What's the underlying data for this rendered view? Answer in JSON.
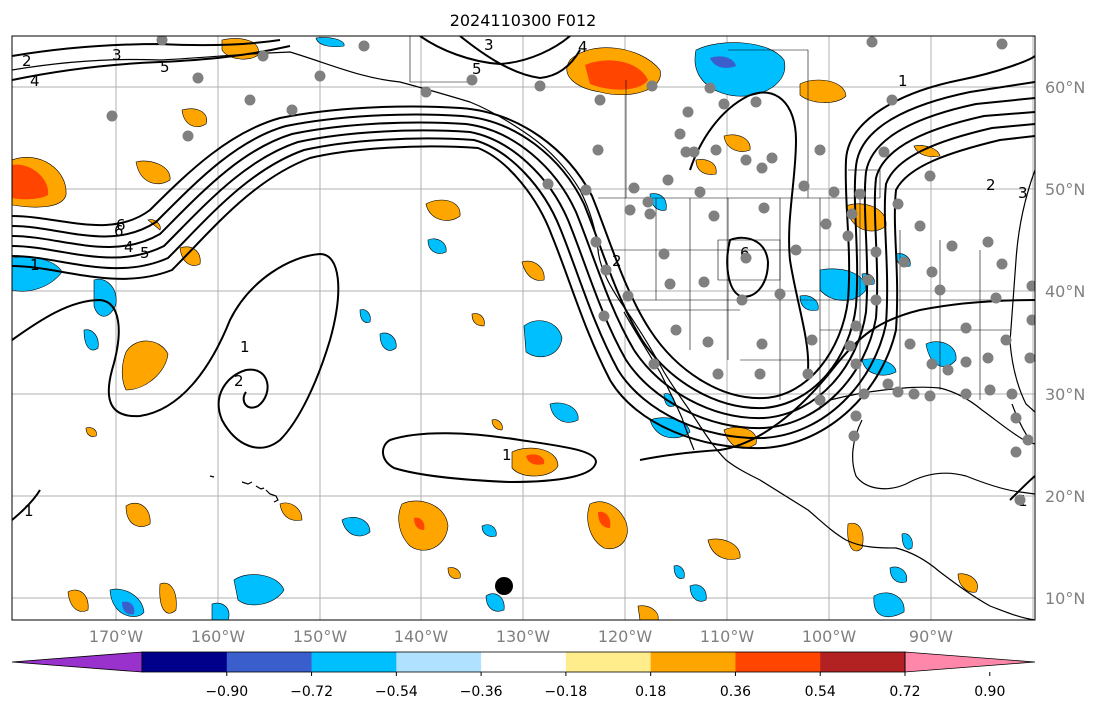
{
  "title": "2024110300 F012",
  "lon_labels": [
    "170°W",
    "160°W",
    "150°W",
    "140°W",
    "130°W",
    "120°W",
    "110°W",
    "100°W",
    "90°W"
  ],
  "lat_labels": [
    "60°N",
    "50°N",
    "40°N",
    "30°N",
    "20°N",
    "10°N"
  ],
  "colorbar": {
    "tick_labels": [
      "−0.90",
      "−0.72",
      "−0.54",
      "−0.36",
      "−0.18",
      "0.18",
      "0.36",
      "0.54",
      "0.72",
      "0.90"
    ],
    "colors": [
      "#9932cc",
      "#00008b",
      "#3a5fcd",
      "#00bfff",
      "#b0e2ff",
      "#ffffff",
      "#ffec8b",
      "#ffa500",
      "#ff4500",
      "#b22222",
      "#ff88aa"
    ]
  },
  "contour_labels": [
    "1",
    "2",
    "4",
    "5",
    "6",
    "3",
    "1",
    "2",
    "3",
    "4",
    "5",
    "6",
    "1",
    "1",
    "2",
    "3",
    "6",
    "5",
    "4",
    "1",
    "1",
    "2"
  ],
  "map_settings": {
    "projection": "PlateCarree",
    "lon_range": [
      -180,
      -80
    ],
    "lat_range": [
      8,
      65
    ],
    "gridlines": true,
    "coastlines": true,
    "us_state_borders": true
  },
  "colors": {
    "contour": "#000000",
    "station_dots": "#808080",
    "marker": "#000000",
    "grid": "#b0b0b0"
  }
}
